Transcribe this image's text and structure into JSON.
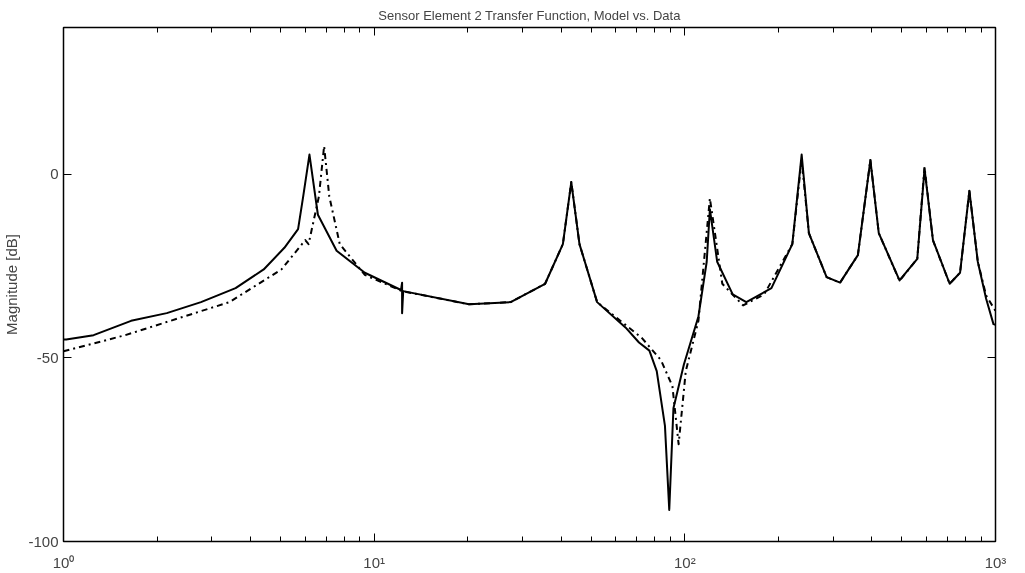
{
  "chart_data": {
    "type": "line",
    "title": "Sensor Element 2 Transfer Function, Model vs. Data",
    "ylabel": "Magnitude [dB]",
    "log": "x",
    "grid": false,
    "xlim": [
      1,
      1000
    ],
    "ylim": [
      -100,
      40
    ],
    "xticks": [
      {
        "value": 1,
        "label": "10⁰"
      },
      {
        "value": 2,
        "label": null
      },
      {
        "value": 3,
        "label": null
      },
      {
        "value": 4,
        "label": null
      },
      {
        "value": 5,
        "label": null
      },
      {
        "value": 6,
        "label": null
      },
      {
        "value": 7,
        "label": null
      },
      {
        "value": 8,
        "label": null
      },
      {
        "value": 9,
        "label": null
      },
      {
        "value": 10,
        "label": "10¹"
      },
      {
        "value": 20,
        "label": null
      },
      {
        "value": 30,
        "label": null
      },
      {
        "value": 40,
        "label": null
      },
      {
        "value": 50,
        "label": null
      },
      {
        "value": 60,
        "label": null
      },
      {
        "value": 70,
        "label": null
      },
      {
        "value": 80,
        "label": null
      },
      {
        "value": 90,
        "label": null
      },
      {
        "value": 100,
        "label": "10²"
      },
      {
        "value": 200,
        "label": null
      },
      {
        "value": 300,
        "label": null
      },
      {
        "value": 400,
        "label": null
      },
      {
        "value": 500,
        "label": null
      },
      {
        "value": 600,
        "label": null
      },
      {
        "value": 700,
        "label": null
      },
      {
        "value": 800,
        "label": null
      },
      {
        "value": 900,
        "label": null
      },
      {
        "value": 1000,
        "label": "10³"
      }
    ],
    "yticks": [
      -100,
      -50,
      0
    ],
    "series": [
      {
        "color": "#000000",
        "line_style": "solid",
        "x": [
          1.0,
          1.02,
          1.25,
          1.65,
          2.15,
          2.77,
          3.58,
          4.41,
          5.14,
          5.69,
          5.91,
          6.19,
          6.59,
          7.57,
          9.33,
          12.2,
          12.3,
          12.3,
          12.4,
          20.2,
          27.5,
          35.5,
          40.5,
          43.1,
          45.8,
          52.2,
          64.4,
          71.2,
          76.9,
          81.2,
          86.3,
          89.1,
          91.9,
          99.3,
          110.6,
          117.6,
          120.4,
          127.1,
          142.6,
          157.7,
          190,
          221.8,
          237.7,
          250.8,
          286,
          316,
          360.6,
          395.6,
          421,
          491,
          560,
          591,
          629,
          712,
          769,
          824,
          877,
          933,
          985,
          1000
        ],
        "values": [
          -45,
          -45,
          -43.8,
          -39.9,
          -37.8,
          -34.8,
          -31,
          -25.9,
          -20,
          -14.9,
          -6,
          5.4,
          -11,
          -20.8,
          -26.8,
          -31.5,
          -29.5,
          -37.8,
          -31.8,
          -35.4,
          -34.8,
          -29.8,
          -19,
          -2.1,
          -19,
          -34.8,
          -41.7,
          -45.8,
          -48,
          -53.6,
          -68.5,
          -91.4,
          -63.7,
          -51.8,
          -38.7,
          -23.8,
          -9.5,
          -23.8,
          -32.7,
          -34.8,
          -31,
          -19,
          5.4,
          -16,
          -28,
          -29.5,
          -22,
          3.9,
          -16,
          -28.9,
          -23,
          1.5,
          -17.9,
          -29.8,
          -26.8,
          -4.5,
          -23.8,
          -33.9,
          -40.8,
          -41
        ]
      },
      {
        "color": "#000000",
        "line_style": "dashdot",
        "x": [
          1.0,
          1.58,
          3.42,
          5.03,
          6.0,
          6.15,
          6.64,
          6.9,
          7.17,
          7.75,
          9.33,
          12.3,
          20.2,
          27.5,
          35.5,
          40.5,
          43.1,
          45.8,
          52.2,
          64.4,
          72.8,
          83.8,
          91.2,
          95.5,
          100.7,
          110.6,
          120.4,
          132,
          154,
          180,
          221.8,
          237.7,
          250.8,
          286,
          316,
          360.6,
          395.6,
          421,
          491,
          560,
          591,
          629,
          712,
          769,
          824,
          877,
          933,
          1000
        ],
        "values": [
          -48.2,
          -43.8,
          -34.8,
          -25.9,
          -17.9,
          -19,
          -6,
          7.7,
          -6,
          -19,
          -27.4,
          -31.8,
          -35.4,
          -34.8,
          -29.8,
          -19,
          -2.1,
          -19,
          -34.8,
          -41,
          -44.6,
          -50.6,
          -57.7,
          -73.5,
          -53.6,
          -39.9,
          -6.5,
          -29.8,
          -35.7,
          -32.7,
          -19,
          4,
          -16,
          -28,
          -29.5,
          -22,
          3.9,
          -16,
          -29,
          -23,
          2,
          -18,
          -29.8,
          -26.8,
          -4.5,
          -23.8,
          -33,
          -37.2
        ]
      }
    ]
  }
}
